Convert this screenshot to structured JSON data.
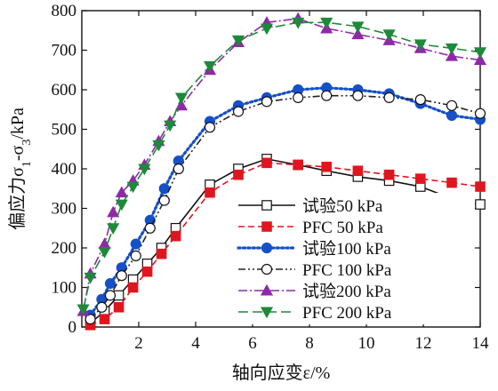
{
  "chart_data": {
    "type": "line",
    "title": "",
    "xlabel": "轴向应变ε/%",
    "ylabel": "偏应力σ1-σ3/kPa",
    "ylabel_parts": {
      "prefix": "偏应力σ",
      "sub1": "1",
      "mid": "-σ",
      "sub3": "3",
      "suffix": "/kPa"
    },
    "xlim": [
      0,
      14
    ],
    "ylim": [
      0,
      800
    ],
    "xticks": [
      "2",
      "4",
      "6",
      "8",
      "10",
      "12",
      "14"
    ],
    "yticks": [
      "0",
      "100",
      "200",
      "300",
      "400",
      "500",
      "600",
      "700",
      "800"
    ],
    "grid": false,
    "legend_position": "lower-right",
    "series": [
      {
        "name": "试验50 kPa",
        "color": "#111111",
        "style": "solid",
        "marker": "open-square",
        "x": [
          0.3,
          0.8,
          1.3,
          1.8,
          2.3,
          2.8,
          3.3,
          4.5,
          5.5,
          6.5,
          7.6,
          8.6,
          9.7,
          10.8,
          11.9,
          13.0,
          14.0
        ],
        "y": [
          10,
          40,
          80,
          120,
          160,
          200,
          250,
          360,
          400,
          425,
          410,
          395,
          380,
          370,
          355,
          325,
          310
        ]
      },
      {
        "name": "PFC 50 kPa",
        "color": "#e0161f",
        "style": "dashed",
        "marker": "filled-square",
        "x": [
          0.3,
          0.8,
          1.3,
          1.8,
          2.3,
          2.8,
          3.3,
          4.5,
          5.5,
          6.5,
          7.6,
          8.6,
          9.7,
          10.8,
          11.9,
          13.0,
          14.0
        ],
        "y": [
          5,
          20,
          50,
          100,
          140,
          185,
          230,
          340,
          385,
          415,
          410,
          405,
          395,
          385,
          375,
          365,
          355
        ]
      },
      {
        "name": "试验100 kPa",
        "color": "#1550c8",
        "style": "dotted",
        "marker": "filled-circle",
        "x": [
          0.3,
          0.7,
          1.0,
          1.4,
          1.9,
          2.4,
          2.9,
          3.4,
          4.5,
          5.5,
          6.5,
          7.6,
          8.6,
          9.7,
          10.8,
          11.9,
          13.0,
          14.0
        ],
        "y": [
          30,
          70,
          110,
          150,
          210,
          270,
          350,
          420,
          520,
          560,
          580,
          600,
          605,
          600,
          590,
          565,
          535,
          525
        ]
      },
      {
        "name": "PFC 100 kPa",
        "color": "#222222",
        "style": "dashdotdot",
        "marker": "open-circle",
        "x": [
          0.3,
          0.7,
          1.0,
          1.4,
          1.9,
          2.4,
          2.9,
          3.4,
          4.5,
          5.5,
          6.5,
          7.6,
          8.6,
          9.7,
          10.8,
          11.9,
          13.0,
          14.0
        ],
        "y": [
          20,
          50,
          80,
          130,
          180,
          250,
          320,
          400,
          505,
          545,
          570,
          580,
          585,
          585,
          580,
          575,
          560,
          540
        ]
      },
      {
        "name": "试验200 kPa",
        "color": "#8e2aa6",
        "style": "dashdot",
        "marker": "filled-triangle-up",
        "x": [
          0.05,
          0.3,
          0.8,
          1.1,
          1.4,
          1.8,
          2.2,
          2.7,
          3.1,
          3.5,
          4.5,
          5.5,
          6.5,
          7.6,
          8.6,
          9.7,
          10.8,
          11.9,
          13.0,
          14.0
        ],
        "y": [
          40,
          135,
          210,
          290,
          340,
          370,
          410,
          470,
          520,
          560,
          650,
          720,
          770,
          780,
          755,
          740,
          725,
          705,
          685,
          675
        ]
      },
      {
        "name": "PFC 200 kPa",
        "color": "#1d8a3a",
        "style": "longdash",
        "marker": "filled-triangle-down",
        "x": [
          0.05,
          0.3,
          0.8,
          1.1,
          1.4,
          1.8,
          2.2,
          2.7,
          3.1,
          3.5,
          4.5,
          5.5,
          6.5,
          7.6,
          8.6,
          9.7,
          10.8,
          11.9,
          13.0,
          14.0
        ],
        "y": [
          45,
          125,
          190,
          250,
          310,
          355,
          400,
          460,
          510,
          580,
          660,
          725,
          755,
          770,
          770,
          760,
          740,
          715,
          705,
          695
        ]
      }
    ]
  }
}
